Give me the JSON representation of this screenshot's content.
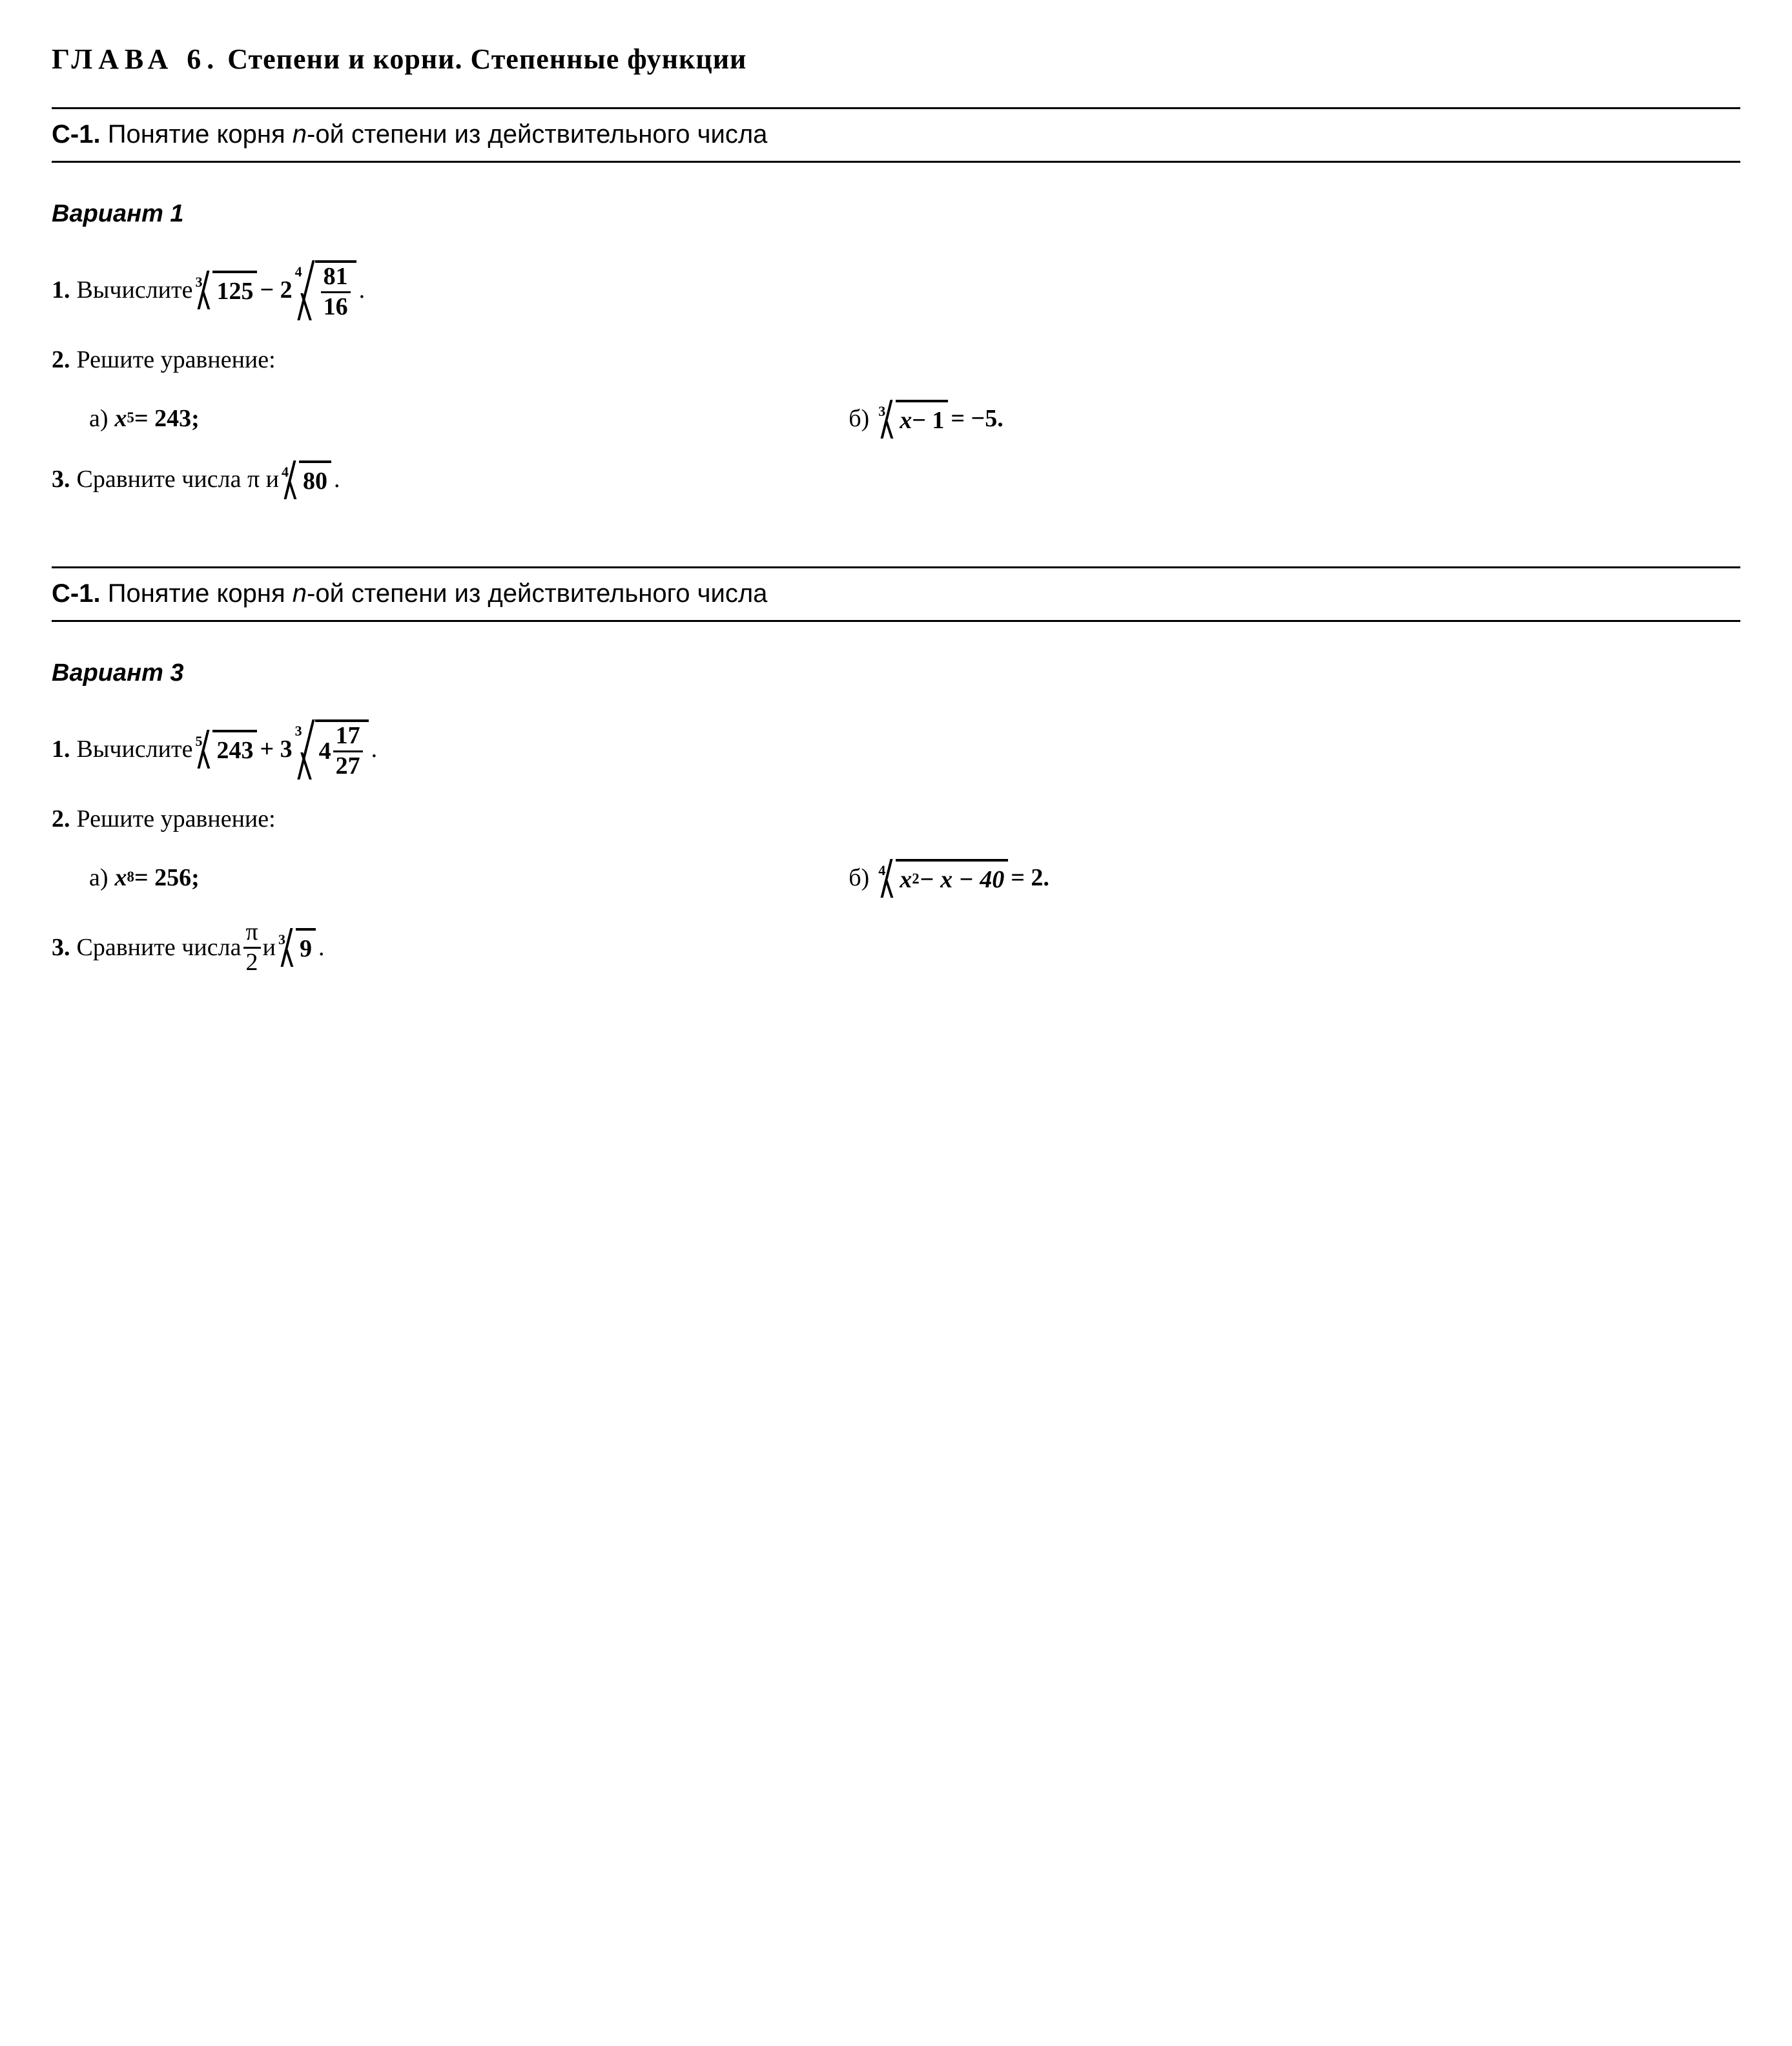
{
  "chapter": {
    "label": "ГЛАВА 6.",
    "title": "Степени и корни. Степенные функции"
  },
  "section": {
    "code": "С-1.",
    "title_before_n": "Понятие корня ",
    "n_text": "n",
    "title_after_n": "-ой степени из действительного числа"
  },
  "v1": {
    "label": "Вариант 1",
    "p1": {
      "num": "1.",
      "word": "Вычислите ",
      "root1_index": "3",
      "root1_rad": "125",
      "op": " − 2",
      "root2_index": "4",
      "frac_num": "81",
      "frac_den": "16",
      "tail": "."
    },
    "p2": {
      "num": "2.",
      "word": "Решите уравнение:",
      "a_lbl": "а)",
      "a_lhs_var": "x",
      "a_lhs_exp": "5",
      "a_rest": " = 243;",
      "b_lbl": "б)",
      "b_root_index": "3",
      "b_rad_var": "x",
      "b_rad_rest": " − 1",
      "b_tail": "  = −5."
    },
    "p3": {
      "num": "3.",
      "word": "Сравните числа π и ",
      "root_index": "4",
      "root_rad": "80",
      "tail": "."
    }
  },
  "v3": {
    "label": "Вариант 3",
    "p1": {
      "num": "1.",
      "word": "Вычислите ",
      "root1_index": "5",
      "root1_rad": "243",
      "op": " + 3",
      "root2_index": "3",
      "mixed_whole": "4",
      "frac_num": "17",
      "frac_den": "27",
      "tail": "."
    },
    "p2": {
      "num": "2.",
      "word": "Решите уравнение:",
      "a_lbl": "а)",
      "a_lhs_var": "x",
      "a_lhs_exp": "8",
      "a_rest": " = 256;",
      "b_lbl": "б)",
      "b_root_index": "4",
      "b_rad_var": "x",
      "b_rad_exp": "2",
      "b_rad_rest": " − x − 40",
      "b_tail": "  = 2."
    },
    "p3": {
      "num": "3.",
      "word": "Сравните числа ",
      "frac_num": "π",
      "frac_den": "2",
      "mid": "  и ",
      "root_index": "3",
      "root_rad": "9",
      "tail": "."
    }
  }
}
